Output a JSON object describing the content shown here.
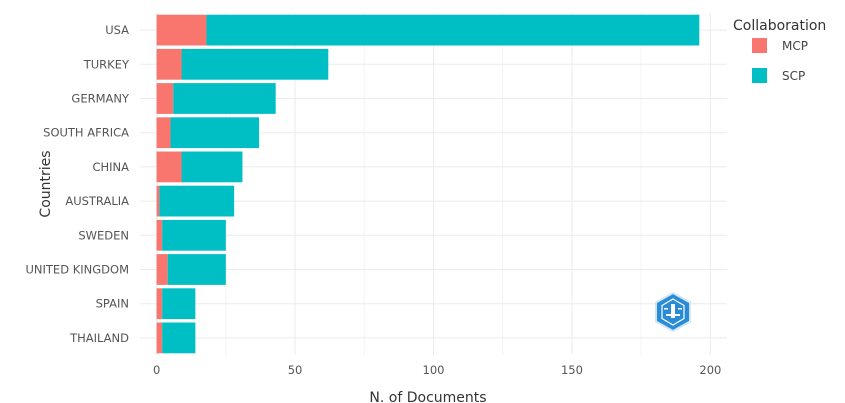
{
  "chart_data": {
    "type": "bar",
    "orientation": "horizontal",
    "stacked": true,
    "categories": [
      "USA",
      "TURKEY",
      "GERMANY",
      "SOUTH AFRICA",
      "CHINA",
      "AUSTRALIA",
      "SWEDEN",
      "UNITED KINGDOM",
      "SPAIN",
      "THAILAND"
    ],
    "series": [
      {
        "name": "MCP",
        "color": "#F8766D",
        "values": [
          18,
          9,
          6,
          5,
          9,
          1,
          2,
          4,
          2,
          2
        ]
      },
      {
        "name": "SCP",
        "color": "#00BFC4",
        "values": [
          178,
          53,
          37,
          32,
          22,
          27,
          23,
          21,
          12,
          12
        ]
      }
    ],
    "xlabel": "N. of Documents",
    "ylabel": "Countries",
    "xlim": [
      -6,
      206
    ],
    "xticks": [
      0,
      50,
      100,
      150,
      200
    ],
    "grid": true,
    "legend": {
      "title": "Collaboration",
      "position": "right"
    },
    "logo": "bibliometrix-logo"
  }
}
